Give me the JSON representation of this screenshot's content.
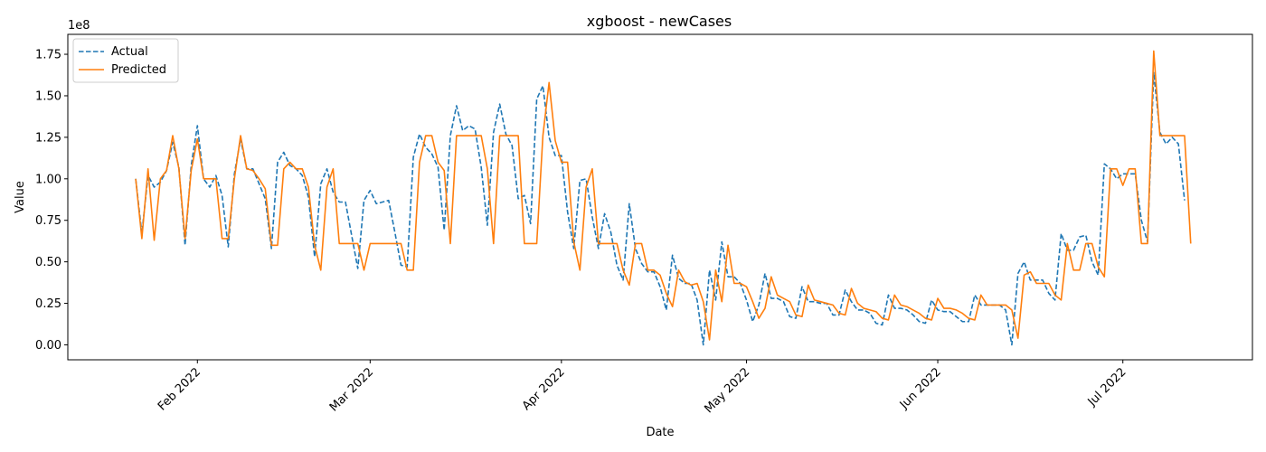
{
  "chart_data": {
    "type": "line",
    "title": "xgboost - newCases",
    "xlabel": "Date",
    "ylabel": "Value",
    "y_scale_label": "1e8",
    "y_multiplier": 100000000,
    "ylim": [
      -0.09,
      1.87
    ],
    "y_ticks": [
      0.0,
      0.25,
      0.5,
      0.75,
      1.0,
      1.25,
      1.5,
      1.75
    ],
    "y_tick_labels": [
      "0.00",
      "0.25",
      "0.50",
      "0.75",
      "1.00",
      "1.25",
      "1.50",
      "1.75"
    ],
    "x_range": [
      "2022-01-11",
      "2022-07-22"
    ],
    "x_ticks": [
      "2022-02-01",
      "2022-03-01",
      "2022-04-01",
      "2022-05-01",
      "2022-06-01",
      "2022-07-01"
    ],
    "x_tick_labels": [
      "Feb 2022",
      "Mar 2022",
      "Apr 2022",
      "May 2022",
      "Jun 2022",
      "Jul 2022"
    ],
    "legend_position": "top-left",
    "grid": false,
    "x_start": "2022-01-22",
    "x_step_days": 1,
    "series": [
      {
        "name": "Actual",
        "color": "#1f77b4",
        "style": "dashed",
        "values": [
          1.0,
          0.67,
          1.02,
          0.95,
          0.98,
          1.05,
          1.22,
          1.07,
          0.6,
          1.08,
          1.32,
          1.0,
          0.95,
          1.02,
          0.9,
          0.59,
          1.03,
          1.24,
          1.06,
          1.06,
          0.97,
          0.88,
          0.58,
          1.1,
          1.16,
          1.08,
          1.06,
          1.02,
          0.89,
          0.53,
          0.97,
          1.06,
          0.92,
          0.86,
          0.86,
          0.66,
          0.46,
          0.87,
          0.93,
          0.85,
          0.86,
          0.87,
          0.68,
          0.48,
          0.47,
          1.13,
          1.27,
          1.19,
          1.15,
          1.07,
          0.69,
          1.26,
          1.44,
          1.29,
          1.32,
          1.3,
          1.07,
          0.72,
          1.28,
          1.45,
          1.27,
          1.2,
          0.88,
          0.9,
          0.73,
          1.48,
          1.56,
          1.25,
          1.14,
          1.14,
          0.8,
          0.58,
          0.99,
          1.0,
          0.77,
          0.58,
          0.79,
          0.68,
          0.48,
          0.39,
          0.85,
          0.58,
          0.49,
          0.44,
          0.44,
          0.35,
          0.21,
          0.54,
          0.4,
          0.37,
          0.37,
          0.27,
          0.0,
          0.45,
          0.27,
          0.62,
          0.41,
          0.41,
          0.37,
          0.27,
          0.14,
          0.24,
          0.43,
          0.28,
          0.28,
          0.26,
          0.17,
          0.16,
          0.35,
          0.26,
          0.26,
          0.25,
          0.25,
          0.18,
          0.18,
          0.33,
          0.26,
          0.21,
          0.21,
          0.19,
          0.13,
          0.12,
          0.3,
          0.22,
          0.22,
          0.21,
          0.18,
          0.14,
          0.13,
          0.27,
          0.21,
          0.2,
          0.2,
          0.17,
          0.14,
          0.14,
          0.3,
          0.24,
          0.24,
          0.24,
          0.24,
          0.21,
          0.0,
          0.43,
          0.5,
          0.39,
          0.39,
          0.39,
          0.31,
          0.27,
          0.67,
          0.57,
          0.57,
          0.65,
          0.66,
          0.5,
          0.42,
          1.09,
          1.06,
          1.0,
          1.03,
          1.03,
          1.03,
          0.75,
          0.62,
          1.64,
          1.28,
          1.21,
          1.25,
          1.21,
          0.87
        ]
      },
      {
        "name": "Predicted",
        "color": "#ff7f0e",
        "style": "solid",
        "values": [
          1.0,
          0.64,
          1.06,
          0.63,
          1.0,
          1.05,
          1.26,
          1.06,
          0.64,
          1.05,
          1.24,
          1.0,
          1.0,
          1.0,
          0.64,
          0.64,
          1.0,
          1.26,
          1.06,
          1.05,
          1.0,
          0.94,
          0.6,
          0.6,
          1.06,
          1.1,
          1.06,
          1.06,
          0.95,
          0.6,
          0.45,
          0.95,
          1.06,
          0.61,
          0.61,
          0.61,
          0.61,
          0.45,
          0.61,
          0.61,
          0.61,
          0.61,
          0.61,
          0.61,
          0.45,
          0.45,
          1.1,
          1.26,
          1.26,
          1.1,
          1.05,
          0.61,
          1.26,
          1.26,
          1.26,
          1.26,
          1.26,
          1.06,
          0.61,
          1.26,
          1.26,
          1.26,
          1.26,
          0.61,
          0.61,
          0.61,
          1.26,
          1.58,
          1.23,
          1.1,
          1.1,
          0.62,
          0.45,
          0.95,
          1.06,
          0.61,
          0.61,
          0.61,
          0.61,
          0.45,
          0.36,
          0.61,
          0.61,
          0.45,
          0.45,
          0.42,
          0.31,
          0.23,
          0.45,
          0.38,
          0.36,
          0.37,
          0.26,
          0.03,
          0.45,
          0.26,
          0.6,
          0.37,
          0.37,
          0.35,
          0.26,
          0.16,
          0.22,
          0.41,
          0.3,
          0.28,
          0.26,
          0.18,
          0.17,
          0.36,
          0.27,
          0.26,
          0.25,
          0.24,
          0.19,
          0.18,
          0.34,
          0.25,
          0.22,
          0.21,
          0.2,
          0.16,
          0.15,
          0.3,
          0.24,
          0.23,
          0.21,
          0.19,
          0.16,
          0.15,
          0.28,
          0.22,
          0.22,
          0.21,
          0.19,
          0.16,
          0.15,
          0.3,
          0.24,
          0.24,
          0.24,
          0.24,
          0.21,
          0.04,
          0.42,
          0.44,
          0.37,
          0.37,
          0.37,
          0.3,
          0.27,
          0.61,
          0.45,
          0.45,
          0.61,
          0.61,
          0.47,
          0.41,
          1.06,
          1.06,
          0.96,
          1.06,
          1.06,
          0.61,
          0.61,
          1.77,
          1.26,
          1.26,
          1.26,
          1.26,
          1.26,
          0.61
        ]
      }
    ]
  }
}
